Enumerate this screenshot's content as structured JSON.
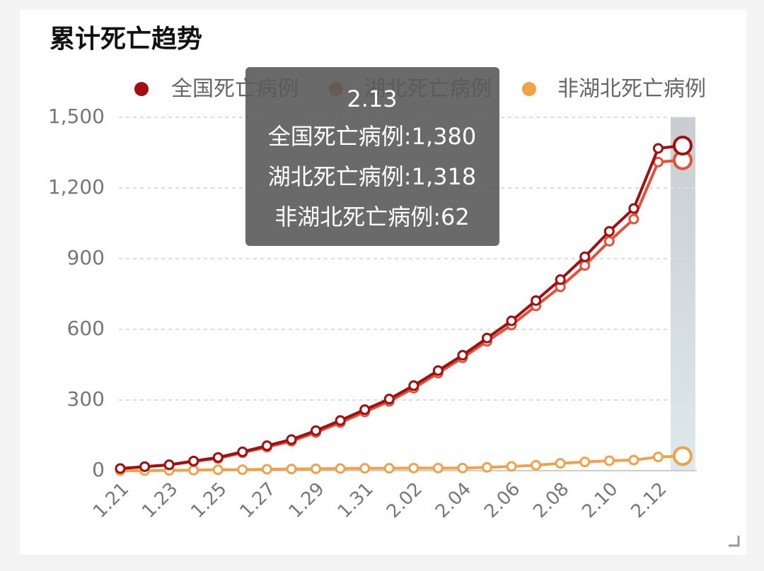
{
  "chart_data": {
    "type": "line",
    "title": "累计死亡趋势",
    "categories": [
      "1.21",
      null,
      "1.23",
      null,
      "1.25",
      null,
      "1.27",
      null,
      "1.29",
      null,
      "1.31",
      null,
      "2.02",
      null,
      "2.04",
      null,
      "2.06",
      null,
      "2.08",
      null,
      "2.10",
      null,
      "2.12",
      null
    ],
    "series": [
      {
        "name": "全国死亡病例",
        "color": "#a01010",
        "values": [
          9,
          17,
          25,
          41,
          56,
          80,
          106,
          132,
          170,
          213,
          259,
          304,
          361,
          425,
          490,
          563,
          636,
          722,
          811,
          908,
          1016,
          1113,
          1368,
          1380
        ]
      },
      {
        "name": "湖北死亡病例",
        "color": "#e0523a",
        "values": [
          9,
          17,
          24,
          39,
          52,
          76,
          100,
          125,
          162,
          204,
          249,
          294,
          350,
          414,
          479,
          549,
          618,
          699,
          780,
          871,
          974,
          1068,
          1310,
          1318
        ]
      },
      {
        "name": "非湖北死亡病例",
        "color": "#f0a24a",
        "values": [
          0,
          0,
          1,
          2,
          4,
          4,
          6,
          7,
          8,
          9,
          10,
          10,
          11,
          11,
          11,
          14,
          18,
          23,
          31,
          37,
          42,
          45,
          58,
          62
        ]
      }
    ],
    "ylim": [
      0,
      1500
    ],
    "yticks": [
      0,
      300,
      600,
      900,
      {
        "value": 1200,
        "label": "1,200"
      },
      {
        "value": 1500,
        "label": "1,500"
      }
    ],
    "grid": true,
    "legend": "top",
    "tooltip": {
      "title": "2.13",
      "rows": [
        "全国死亡病例:1,380",
        "湖北死亡病例:1,318",
        "非湖北死亡病例:62"
      ]
    }
  }
}
